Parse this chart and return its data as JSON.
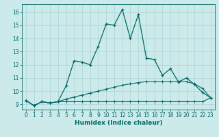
{
  "xlabel": "Humidex (Indice chaleur)",
  "x": [
    0,
    1,
    2,
    3,
    4,
    5,
    6,
    7,
    8,
    9,
    10,
    11,
    12,
    13,
    14,
    15,
    16,
    17,
    18,
    19,
    20,
    21,
    22,
    23
  ],
  "y_main": [
    9.3,
    8.9,
    9.2,
    9.1,
    9.2,
    10.4,
    12.3,
    12.2,
    12.0,
    13.4,
    15.1,
    15.0,
    16.2,
    14.0,
    15.8,
    12.5,
    12.4,
    11.2,
    11.7,
    10.7,
    11.0,
    10.5,
    9.9,
    9.5
  ],
  "y_lower": [
    9.3,
    8.9,
    9.2,
    9.1,
    9.2,
    9.2,
    9.2,
    9.2,
    9.2,
    9.2,
    9.2,
    9.2,
    9.2,
    9.2,
    9.2,
    9.2,
    9.2,
    9.2,
    9.2,
    9.2,
    9.2,
    9.2,
    9.2,
    9.5
  ],
  "y_upper": [
    9.3,
    8.9,
    9.2,
    9.1,
    9.2,
    9.4,
    9.55,
    9.7,
    9.85,
    10.0,
    10.15,
    10.3,
    10.45,
    10.55,
    10.65,
    10.72,
    10.72,
    10.72,
    10.72,
    10.72,
    10.72,
    10.55,
    10.2,
    9.5
  ],
  "line_color": "#006666",
  "bg_color": "#cceaea",
  "grid_color": "#aad4d4",
  "ylim": [
    8.6,
    16.6
  ],
  "xlim": [
    -0.5,
    23.5
  ],
  "yticks": [
    9,
    10,
    11,
    12,
    13,
    14,
    15,
    16
  ],
  "xticks": [
    0,
    1,
    2,
    3,
    4,
    5,
    6,
    7,
    8,
    9,
    10,
    11,
    12,
    13,
    14,
    15,
    16,
    17,
    18,
    19,
    20,
    21,
    22,
    23
  ]
}
